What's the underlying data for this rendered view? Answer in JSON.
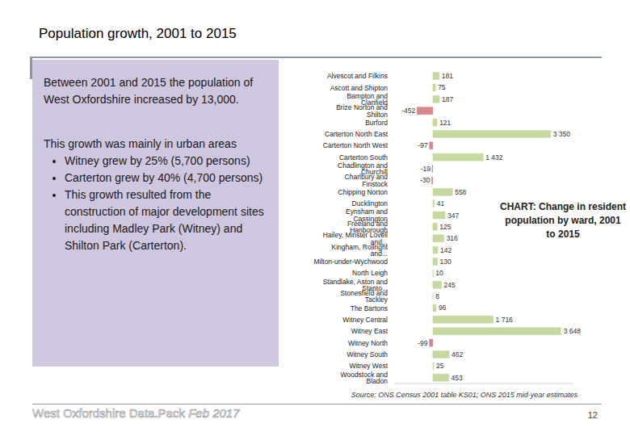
{
  "slide": {
    "title": "Population growth, 2001 to 2015",
    "summary": "Between 2001 and 2015 the population of West Oxfordshire increased by 13,000.",
    "growth_heading": "This growth was mainly in urban areas",
    "bullets": [
      "Witney grew by 25% (5,700 persons)",
      "Carterton grew by 40% (4,700 persons)",
      "This growth resulted from the construction of major development sites including Madley Park (Witney) and Shilton Park (Carterton)."
    ],
    "footer": "West Oxfordshire Data.Pack",
    "footer_date": "Feb 2017",
    "page": 12
  },
  "chart_data": {
    "type": "bar",
    "orientation": "horizontal",
    "title": "CHART: Change in resident population by ward, 2001 to 2015",
    "annotations": [
      "Source: ONS Census 2001 table KS01; ONS 2015 mid-year estimates"
    ],
    "categories": [
      "Alvescot and Filkins",
      "Ascott and Shipton",
      "Bampton and Clanfield",
      "Brize Norton and Shilton",
      "Burford",
      "Carterton North East",
      "Carterton North West",
      "Carterton South",
      "Chadlington and Churchill",
      "Charlbury and Finstock",
      "Chipping Norton",
      "Ducklington",
      "Eynsham and Cassington",
      "Freeland and Hanborough",
      "Hailey, Minster Lovell and...",
      "Kingham, Rollright and...",
      "Milton-under-Wychwood",
      "North Leigh",
      "Standlake, Aston and Stanto...",
      "Stonesfield and Tackley",
      "The Bartons",
      "Witney Central",
      "Witney East",
      "Witney North",
      "Witney South",
      "Witney West",
      "Woodstock and Bladon"
    ],
    "values": [
      181,
      75,
      187,
      -452,
      121,
      3350,
      -97,
      1432,
      -19,
      -30,
      558,
      41,
      347,
      125,
      316,
      142,
      130,
      10,
      245,
      8,
      96,
      1716,
      3648,
      -99,
      462,
      25,
      453
    ],
    "value_labels": [
      "181",
      "75",
      "187",
      "-452",
      "121",
      "3 350",
      "-97",
      "1 432",
      "-19",
      "-30",
      "558",
      "41",
      "347",
      "125",
      "316",
      "142",
      "130",
      "10",
      "245",
      "8",
      "96",
      "1 716",
      "3 648",
      "-99",
      "462",
      "25",
      "453"
    ],
    "colors": [
      "#c6d9a0",
      "#c6d9a0",
      "#c6d9a0",
      "#d9868a",
      "#c6d9a0",
      "#c6d9a0",
      "#d9868a",
      "#c6d9a0",
      "#d9868a",
      "#d9868a",
      "#c6d9a0",
      "#c6d9a0",
      "#c6d9a0",
      "#c6d9a0",
      "#c6d9a0",
      "#c6d9a0",
      "#c6d9a0",
      "#c6d9a0",
      "#c6d9a0",
      "#c6d9a0",
      "#c6d9a0",
      "#c6d9a0",
      "#c6d9a0",
      "#d9868a",
      "#c6d9a0",
      "#c6d9a0",
      "#c6d9a0"
    ],
    "xlim": [
      -1100,
      4000
    ],
    "xticks": [],
    "data_labels": true,
    "tick_labels": "y",
    "grid": false
  }
}
